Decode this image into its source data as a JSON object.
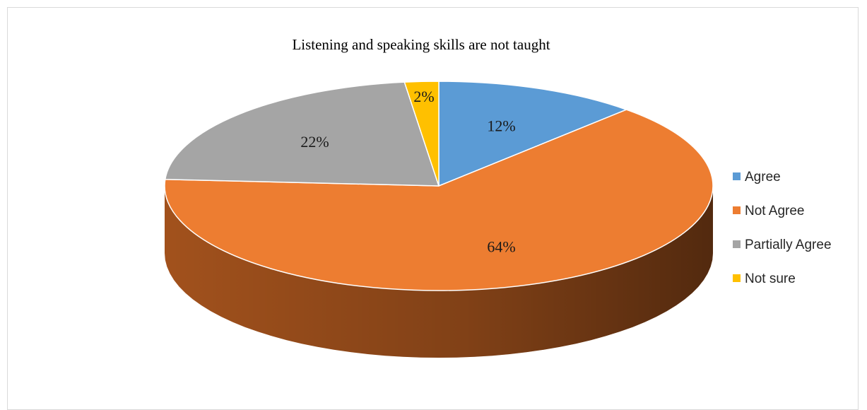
{
  "chart_data": {
    "type": "pie",
    "title": "Listening and speaking skills are not taught",
    "categories": [
      "Agree",
      "Not Agree",
      "Partially Agree",
      "Not sure"
    ],
    "values": [
      12,
      64,
      22,
      2
    ],
    "labels": [
      "12%",
      "64%",
      "22%",
      "2%"
    ],
    "colors": [
      "#5b9bd5",
      "#ed7d31",
      "#a5a5a5",
      "#ffc000"
    ],
    "side_colors": [
      "#3b6e9c",
      "#a5531d",
      "#707070",
      "#b88a00"
    ],
    "legend_position": "right",
    "three_d": true
  }
}
